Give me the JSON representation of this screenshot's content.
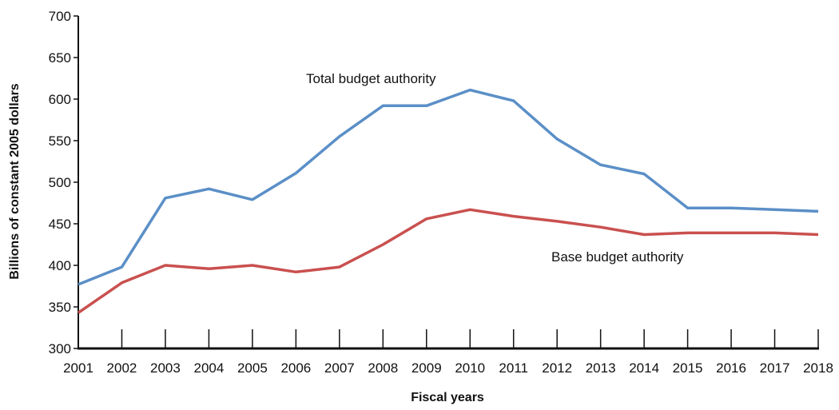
{
  "chart_data": {
    "type": "line",
    "xlabel": "Fiscal years",
    "ylabel": "Billions of constant 2005 dollars",
    "x": [
      "2001",
      "2002",
      "2003",
      "2004",
      "2005",
      "2006",
      "2007",
      "2008",
      "2009",
      "2010",
      "2011",
      "2012",
      "2013",
      "2014",
      "2015",
      "2016",
      "2017",
      "2018"
    ],
    "ylim": [
      300,
      700
    ],
    "yticks": [
      300,
      350,
      400,
      450,
      500,
      550,
      600,
      650,
      700
    ],
    "grid": false,
    "series": [
      {
        "name": "Total budget authority",
        "color": "#5b8fc7",
        "values": [
          377,
          398,
          481,
          492,
          479,
          511,
          555,
          592,
          592,
          611,
          598,
          552,
          521,
          510,
          469,
          469,
          467,
          465
        ]
      },
      {
        "name": "Base budget authority",
        "color": "#c9504f",
        "values": [
          343,
          379,
          400,
          396,
          400,
          392,
          398,
          425,
          456,
          467,
          459,
          453,
          446,
          437,
          439,
          439,
          439,
          437
        ]
      }
    ]
  }
}
